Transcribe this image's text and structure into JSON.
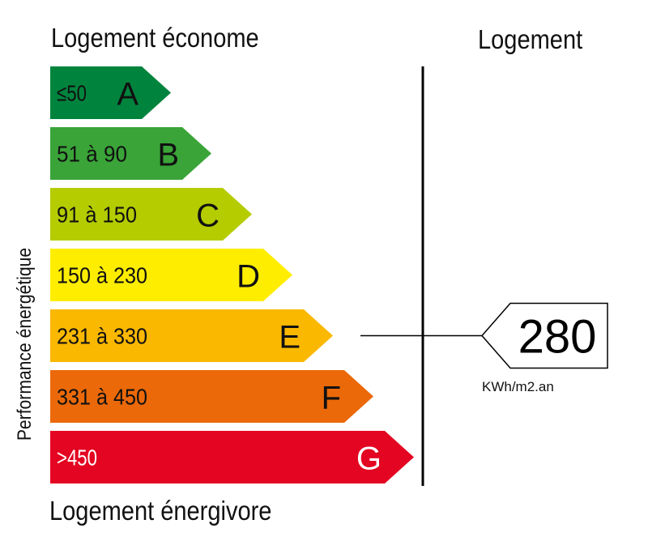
{
  "chart_data": {
    "type": "bar",
    "title": "Logement économe",
    "footer": "Logement énergivore",
    "ylabel": "Performance énergétique",
    "column_header": "Logement",
    "categories": [
      "A",
      "B",
      "C",
      "D",
      "E",
      "F",
      "G"
    ],
    "ranges": [
      "≤50",
      "51 à 90",
      "91 à 150",
      "150 à 230",
      "231 à 330",
      "331 à 450",
      ">450"
    ],
    "colors": [
      "#00843d",
      "#3aa438",
      "#b4cc00",
      "#ffed00",
      "#fbb800",
      "#eb6909",
      "#e30521"
    ],
    "label_colors": [
      "#111111",
      "#111111",
      "#111111",
      "#111111",
      "#111111",
      "#111111",
      "#ffffff"
    ],
    "value": 280,
    "value_class": "E",
    "unit": "KWh/m2.an"
  }
}
